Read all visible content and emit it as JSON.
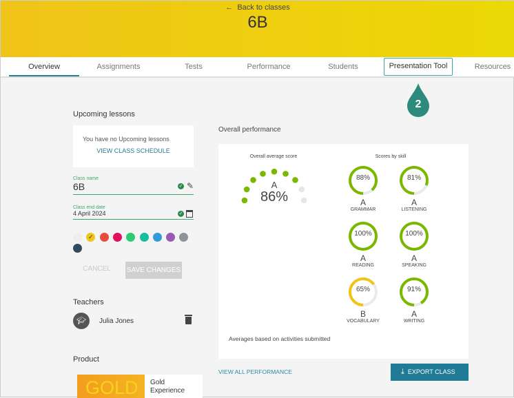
{
  "header": {
    "back_label": "Back to classes",
    "title": "6B"
  },
  "tabs": [
    {
      "label": "Overview"
    },
    {
      "label": "Assignments"
    },
    {
      "label": "Tests"
    },
    {
      "label": "Performance"
    },
    {
      "label": "Students"
    },
    {
      "label": "Presentation Tool"
    },
    {
      "label": "Resources"
    }
  ],
  "callout": {
    "number": "2",
    "color": "#2e8a7c"
  },
  "upcoming": {
    "heading": "Upcoming lessons",
    "empty_text": "You have no Upcoming lessons",
    "link": "VIEW CLASS SCHEDULE"
  },
  "form": {
    "class_name_label": "Class name",
    "class_name": "6B",
    "end_date_label": "Class end date",
    "end_date": "4 April 2024",
    "colors": [
      "#eeeeee",
      "#f0c419",
      "#e74c3c",
      "#e0115f",
      "#2ecc71",
      "#1abc9c",
      "#3498db",
      "#9b59b6",
      "#8e9499",
      "#34495e"
    ],
    "selected_color": "#f0c419",
    "cancel": "CANCEL",
    "save": "SAVE CHANGES"
  },
  "teachers": {
    "heading": "Teachers",
    "items": [
      {
        "name": "Julia Jones"
      }
    ]
  },
  "product": {
    "heading": "Product",
    "logo_text": "GOLD",
    "name_line1": "Gold",
    "name_line2": "Experience"
  },
  "performance": {
    "heading": "Overall performance",
    "overall_label": "Overall average score",
    "overall_grade": "A",
    "overall_score": "86%",
    "overall_dots_filled": 7,
    "overall_dots_total": 9,
    "skills_label": "Scores by skill",
    "skills": [
      {
        "name": "GRAMMAR",
        "score": "88%",
        "value": 88,
        "grade": "A",
        "color": "#7ab800"
      },
      {
        "name": "LISTENING",
        "score": "81%",
        "value": 81,
        "grade": "A",
        "color": "#7ab800"
      },
      {
        "name": "READING",
        "score": "100%",
        "value": 100,
        "grade": "A",
        "color": "#7ab800"
      },
      {
        "name": "SPEAKING",
        "score": "100%",
        "value": 100,
        "grade": "A",
        "color": "#7ab800"
      },
      {
        "name": "VOCABULARY",
        "score": "65%",
        "value": 65,
        "grade": "B",
        "color": "#f0c419"
      },
      {
        "name": "WRITING",
        "score": "91%",
        "value": 91,
        "grade": "A",
        "color": "#7ab800"
      }
    ],
    "footnote": "Averages based on activities submitted",
    "view_all": "VIEW ALL PERFORMANCE",
    "export": "EXPORT CLASS"
  }
}
